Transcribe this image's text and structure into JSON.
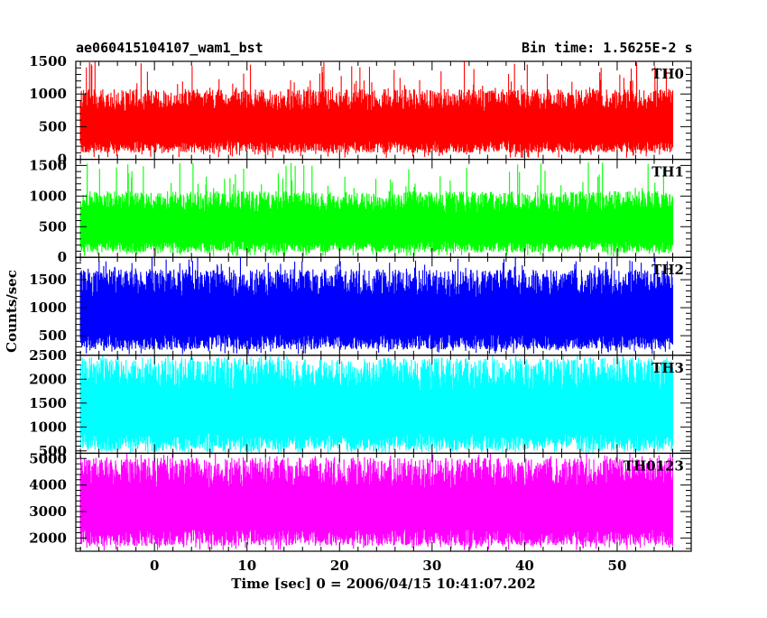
{
  "title": "ae060415104107_wam1_bst",
  "subtitle": "Bin time: 1.5625E-2 s",
  "xlabel": "Time [sec] 0 = 2006/04/15 10:41:07.202",
  "ylabel": "Counts/sec",
  "chart_data": {
    "type": "line",
    "title": "ae060415104107_wam1_bst",
    "subtitle": "Bin time: 1.5625E-2 s",
    "xlabel": "Time [sec] 0 = 2006/04/15 10:41:07.202",
    "ylabel": "Counts/sec",
    "xlim": [
      -8.5,
      58
    ],
    "x_data_range": [
      -8,
      56
    ],
    "xticks": [
      0,
      10,
      20,
      30,
      40,
      50
    ],
    "x_minor_step": 2,
    "grid": false,
    "legend": "none",
    "panels": [
      {
        "name": "TH0",
        "color": "#ff0000",
        "ylim": [
          0,
          1500
        ],
        "yticks": [
          0,
          500,
          1000,
          1500
        ],
        "y_minor_step": 100,
        "typical_low": 100,
        "typical_high": 950,
        "peak": 1500
      },
      {
        "name": "TH1",
        "color": "#00ff00",
        "ylim": [
          0,
          1600
        ],
        "yticks": [
          0,
          500,
          1000,
          1500
        ],
        "y_minor_step": 100,
        "typical_low": 80,
        "typical_high": 950,
        "peak": 1550
      },
      {
        "name": "TH2",
        "color": "#0000ff",
        "ylim": [
          150,
          1900
        ],
        "yticks": [
          500,
          1000,
          1500
        ],
        "y_minor_step": 100,
        "typical_low": 250,
        "typical_high": 1500,
        "peak": 1900
      },
      {
        "name": "TH3",
        "color": "#00ffff",
        "ylim": [
          450,
          2500
        ],
        "yticks": [
          500,
          1000,
          1500,
          2000,
          2500
        ],
        "y_minor_step": 100,
        "typical_low": 500,
        "typical_high": 2200,
        "peak": 2500
      },
      {
        "name": "TH0123",
        "color": "#ff00ff",
        "ylim": [
          1500,
          5200
        ],
        "yticks": [
          2000,
          3000,
          4000,
          5000
        ],
        "y_minor_step": 200,
        "typical_low": 1700,
        "typical_high": 4600,
        "peak": 5200
      }
    ]
  }
}
